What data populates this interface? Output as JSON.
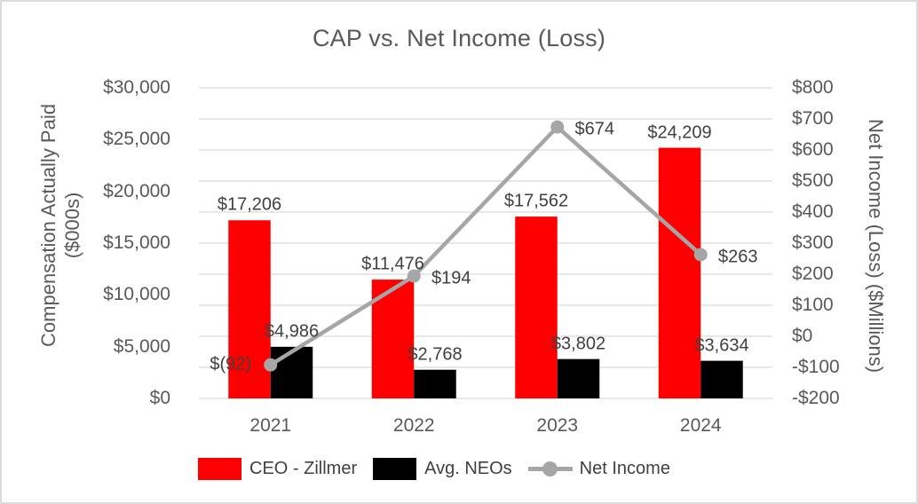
{
  "title": "CAP vs. Net Income (Loss)",
  "colors": {
    "ceo_bar": "#FF0000",
    "neo_bar": "#000000",
    "net_income_line": "#A6A6A6",
    "gridline": "#D9D9D9",
    "axis_text": "#595959",
    "data_label_text": "#404040",
    "frame_border": "#DCDCDC",
    "background": "#FFFFFF"
  },
  "chart_data": {
    "type": "bar+line combo",
    "title": "CAP vs. Net Income (Loss)",
    "categories": [
      "2021",
      "2022",
      "2023",
      "2024"
    ],
    "series": [
      {
        "name": "CEO - Zillmer",
        "type": "bar",
        "axis": "left",
        "color": "#FF0000",
        "values": [
          17206,
          11476,
          17562,
          24209
        ],
        "labels": [
          "$17,206",
          "$11,476",
          "$17,562",
          "$24,209"
        ]
      },
      {
        "name": "Avg. NEOs",
        "type": "bar",
        "axis": "left",
        "color": "#000000",
        "values": [
          4986,
          2768,
          3802,
          3634
        ],
        "labels": [
          "$4,986",
          "$2,768",
          "$3,802",
          "$3,634"
        ]
      },
      {
        "name": "Net Income",
        "type": "line",
        "axis": "right",
        "color": "#A6A6A6",
        "values": [
          -92,
          194,
          674,
          263
        ],
        "labels": [
          "$(92)",
          "$194",
          "$674",
          "$263"
        ],
        "label_side": [
          "left",
          "right",
          "right",
          "right"
        ]
      }
    ],
    "left_axis": {
      "title_lines": [
        "Compensation Actually Paid",
        "($000s)"
      ],
      "min": 0,
      "max": 30000,
      "ticks": [
        "$30,000",
        "$25,000",
        "$20,000",
        "$15,000",
        "$10,000",
        "$5,000",
        "$0"
      ]
    },
    "right_axis": {
      "title": "Net Income (Loss) ($Millions)",
      "min": -200,
      "max": 800,
      "ticks": [
        "$800",
        "$700",
        "$600",
        "$500",
        "$400",
        "$300",
        "$200",
        "$100",
        "$0",
        "-$100",
        "-$200"
      ]
    },
    "grid": true,
    "legend_position": "bottom"
  }
}
